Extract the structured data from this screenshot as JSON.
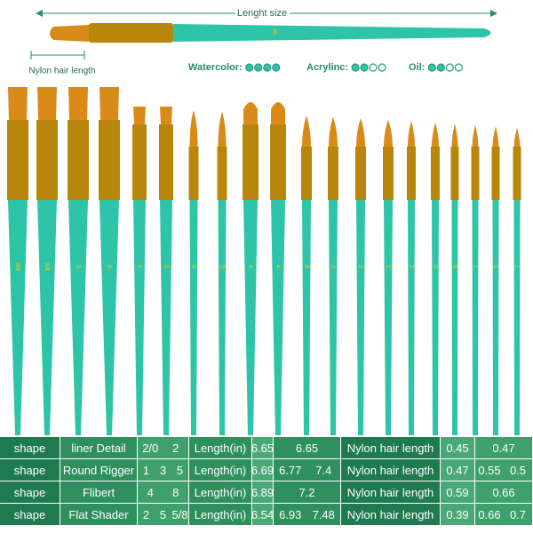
{
  "header": {
    "length_label": "Lenght size",
    "hair_label": "Nylon hair length",
    "top_brush_label": "8"
  },
  "suitability": [
    {
      "label": "Watercolor:",
      "filled": 4,
      "total": 4
    },
    {
      "label": "Acrylinc:",
      "filled": 2,
      "total": 4
    },
    {
      "label": "Oil:",
      "filled": 2,
      "total": 4
    }
  ],
  "brushes": [
    "3/4",
    "3/4",
    "8",
    "8",
    "6",
    "6",
    "5",
    "5",
    "4",
    "4",
    "3",
    "3",
    "2",
    "2",
    "2",
    "0",
    "0",
    "1",
    "1",
    "1"
  ],
  "table": {
    "rows": [
      [
        "shape",
        "liner Detail",
        [
          "2/0",
          "2"
        ],
        "Length(in)",
        "6.65",
        [
          "6.65"
        ],
        "Nylon hair length",
        "0.45",
        [
          "0.47"
        ]
      ],
      [
        "shape",
        "Round Rigger",
        [
          "1",
          "3",
          "5"
        ],
        "Length(in)",
        "6.69",
        [
          "6.77",
          "7.4"
        ],
        "Nylon hair length",
        "0.47",
        [
          "0.55",
          "0.5"
        ]
      ],
      [
        "shape",
        "Flibert",
        [
          "4",
          "8"
        ],
        "Length(in)",
        "6.89",
        [
          "7.2"
        ],
        "Nylon hair length",
        "0.59",
        [
          "0.66"
        ]
      ],
      [
        "shape",
        "Flat Shader",
        [
          "2",
          "5",
          "5/8"
        ],
        "Length(in)",
        "6.54",
        [
          "6.93",
          "7.48"
        ],
        "Nylon hair length",
        "0.39",
        [
          "0.66",
          "0.7"
        ]
      ]
    ]
  }
}
